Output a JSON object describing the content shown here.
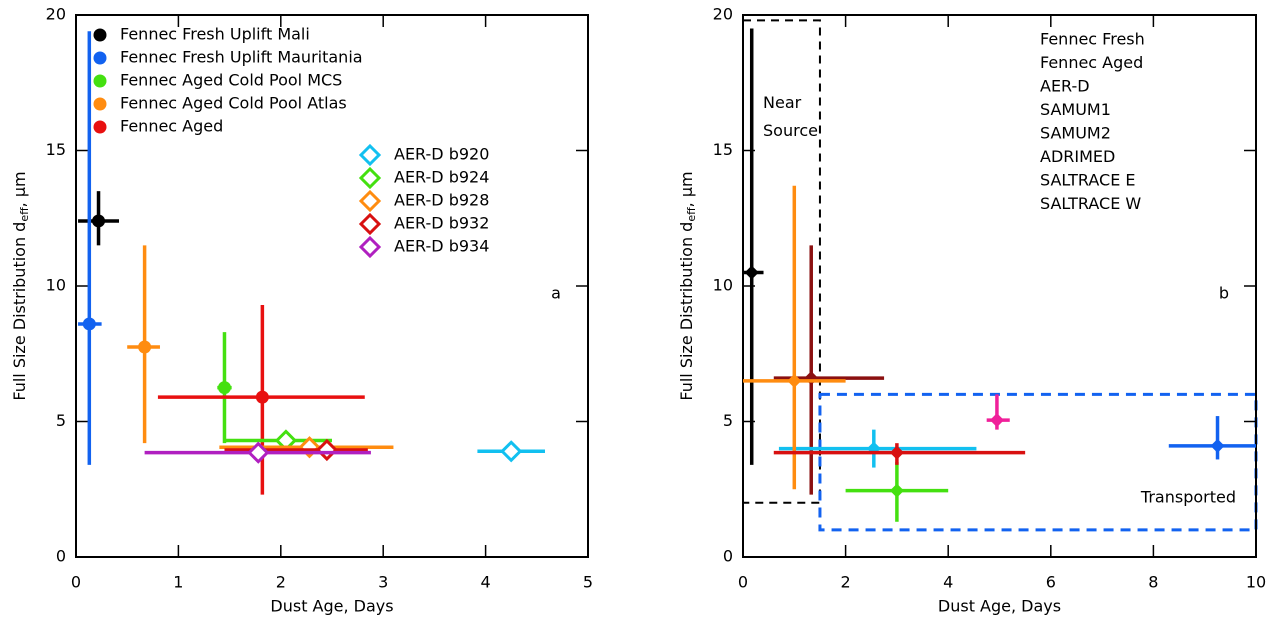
{
  "chart_data": [
    {
      "type": "scatter",
      "panel_label": "a",
      "xlabel": "Dust Age, Days",
      "ylabel": "Full Size Distribution d",
      "ylabel_subscript": "eff",
      "ylabel_unit": ", μm",
      "xlim": [
        0,
        5
      ],
      "ylim": [
        0,
        20
      ],
      "xticks": [
        0,
        1,
        2,
        3,
        4,
        5
      ],
      "yticks": [
        0,
        5,
        10,
        15,
        20
      ],
      "legend": "upper left",
      "series": [
        {
          "name": "Fennec Fresh Uplift Mali",
          "color": "#000000",
          "marker": "circle",
          "x": 0.22,
          "y": 12.4,
          "x_lo": 0.02,
          "x_hi": 0.42,
          "y_lo": 11.5,
          "y_hi": 13.5
        },
        {
          "name": "Fennec Fresh Uplift Mauritania",
          "color": "#1262f0",
          "marker": "circle",
          "x": 0.13,
          "y": 8.6,
          "x_lo": 0.02,
          "x_hi": 0.25,
          "y_lo": 3.4,
          "y_hi": 19.4
        },
        {
          "name": "Fennec Aged Cold Pool MCS",
          "color": "#44e010",
          "marker": "circle",
          "x": 1.45,
          "y": 6.25,
          "x_lo": 1.38,
          "x_hi": 1.52,
          "y_lo": 4.2,
          "y_hi": 8.3
        },
        {
          "name": "Fennec Aged Cold Pool Atlas",
          "color": "#ff8c10",
          "marker": "circle",
          "x": 0.67,
          "y": 7.75,
          "x_lo": 0.5,
          "x_hi": 0.82,
          "y_lo": 4.2,
          "y_hi": 11.5
        },
        {
          "name": "Fennec Aged",
          "color": "#e81010",
          "marker": "circle",
          "x": 1.82,
          "y": 5.9,
          "x_lo": 0.8,
          "x_hi": 2.82,
          "y_lo": 2.3,
          "y_hi": 9.3
        },
        {
          "name": "AER-D b920",
          "color": "#12c0f0",
          "marker": "diamond-open",
          "x": 4.25,
          "y": 3.9,
          "x_lo": 3.92,
          "x_hi": 4.58
        },
        {
          "name": "AER-D b924",
          "color": "#44e010",
          "marker": "diamond-open",
          "x": 2.05,
          "y": 4.3,
          "x_lo": 1.45,
          "x_hi": 2.5
        },
        {
          "name": "AER-D b928",
          "color": "#ff8c10",
          "marker": "diamond-open",
          "x": 2.28,
          "y": 4.05,
          "x_lo": 1.4,
          "x_hi": 3.1
        },
        {
          "name": "AER-D b932",
          "color": "#d81010",
          "marker": "diamond-open",
          "x": 2.45,
          "y": 3.95,
          "x_lo": 1.45,
          "x_hi": 2.85
        },
        {
          "name": "AER-D b934",
          "color": "#b020c0",
          "marker": "diamond-open",
          "x": 1.78,
          "y": 3.85,
          "x_lo": 0.67,
          "x_hi": 2.88
        }
      ]
    },
    {
      "type": "scatter",
      "panel_label": "b",
      "xlabel": "Dust Age, Days",
      "ylabel": "Full Size Distribution d",
      "ylabel_subscript": "eff",
      "ylabel_unit": ", μm",
      "xlim": [
        0,
        10
      ],
      "ylim": [
        0,
        20
      ],
      "xticks": [
        0,
        2,
        4,
        6,
        8,
        10
      ],
      "yticks": [
        0,
        5,
        10,
        15,
        20
      ],
      "legend": "upper right",
      "regions": [
        {
          "label": [
            "Near",
            "Source"
          ],
          "color": "#000000",
          "x_lo": 0,
          "x_hi": 1.5,
          "y_lo": 2,
          "y_hi": 19.8
        },
        {
          "label": [
            "Transported"
          ],
          "color": "#1262f0",
          "x_lo": 1.5,
          "x_hi": 10,
          "y_lo": 1,
          "y_hi": 6
        }
      ],
      "series": [
        {
          "name": "Fennec Fresh",
          "color": "#000000",
          "marker": "diamond",
          "x": 0.17,
          "y": 10.5,
          "x_lo": 0.02,
          "x_hi": 0.4,
          "y_lo": 3.4,
          "y_hi": 19.5
        },
        {
          "name": "Fennec Aged",
          "color": "#8b1010",
          "marker": "diamond",
          "x": 1.33,
          "y": 6.6,
          "x_lo": 0.6,
          "x_hi": 2.75,
          "y_lo": 2.3,
          "y_hi": 11.5
        },
        {
          "name": "AER-D",
          "color": "#12c0f0",
          "marker": "diamond",
          "x": 2.55,
          "y": 4.0,
          "x_lo": 0.7,
          "x_hi": 4.55,
          "y_lo": 3.3,
          "y_hi": 4.7
        },
        {
          "name": "SAMUM1",
          "color": "#ff8c10",
          "marker": "diamond",
          "x": 1.0,
          "y": 6.5,
          "x_lo": 0,
          "x_hi": 2.0,
          "y_lo": 2.5,
          "y_hi": 13.7
        },
        {
          "name": "SAMUM2",
          "color": "#44e010",
          "marker": "diamond",
          "x": 3.0,
          "y": 2.45,
          "x_lo": 2.0,
          "x_hi": 4.0,
          "y_lo": 1.3,
          "y_hi": 3.5
        },
        {
          "name": "ADRIMED",
          "color": "#d81010",
          "marker": "diamond",
          "x": 3.0,
          "y": 3.85,
          "x_lo": 0.6,
          "x_hi": 5.5,
          "y_lo": 3.4,
          "y_hi": 4.2
        },
        {
          "name": "SALTRACE E",
          "color": "#f0209a",
          "marker": "diamond",
          "x": 4.95,
          "y": 5.05,
          "x_lo": 4.75,
          "x_hi": 5.2,
          "y_lo": 4.7,
          "y_hi": 6.0
        },
        {
          "name": "SALTRACE W",
          "color": "#1262f0",
          "marker": "diamond",
          "x": 9.25,
          "y": 4.1,
          "x_lo": 8.3,
          "x_hi": 10,
          "y_lo": 3.6,
          "y_hi": 5.2
        }
      ]
    }
  ]
}
